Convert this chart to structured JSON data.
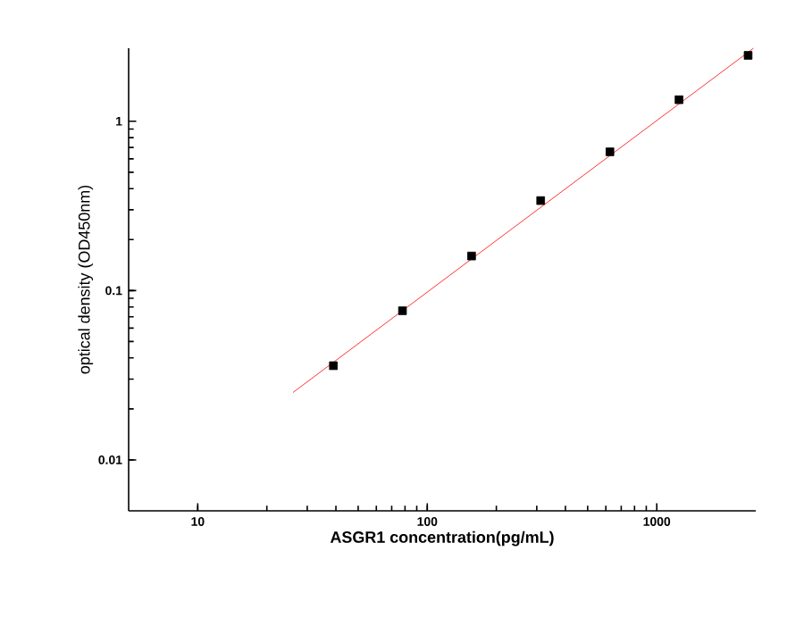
{
  "chart_data": {
    "type": "scatter",
    "xlabel": "ASGR1  concentration(pg/mL)",
    "ylabel": "optical density (OD450nm)",
    "log": "xy",
    "xlim": [
      5,
      2700
    ],
    "ylim": [
      0.005,
      2.7
    ],
    "xticks": [
      10,
      100,
      1000
    ],
    "yticks": [
      0.01,
      0.1,
      1
    ],
    "grid": false,
    "series": [
      {
        "color": "#000000",
        "marker": "square",
        "x": [
          39,
          78,
          156,
          312,
          625,
          1250,
          2500
        ],
        "values": [
          0.036,
          0.076,
          0.16,
          0.34,
          0.66,
          1.34,
          2.45
        ]
      },
      {
        "type": "line",
        "marker": "none",
        "color": "#ff0000",
        "x": [
          26,
          2640
        ],
        "values": [
          0.025,
          2.7
        ]
      }
    ]
  }
}
